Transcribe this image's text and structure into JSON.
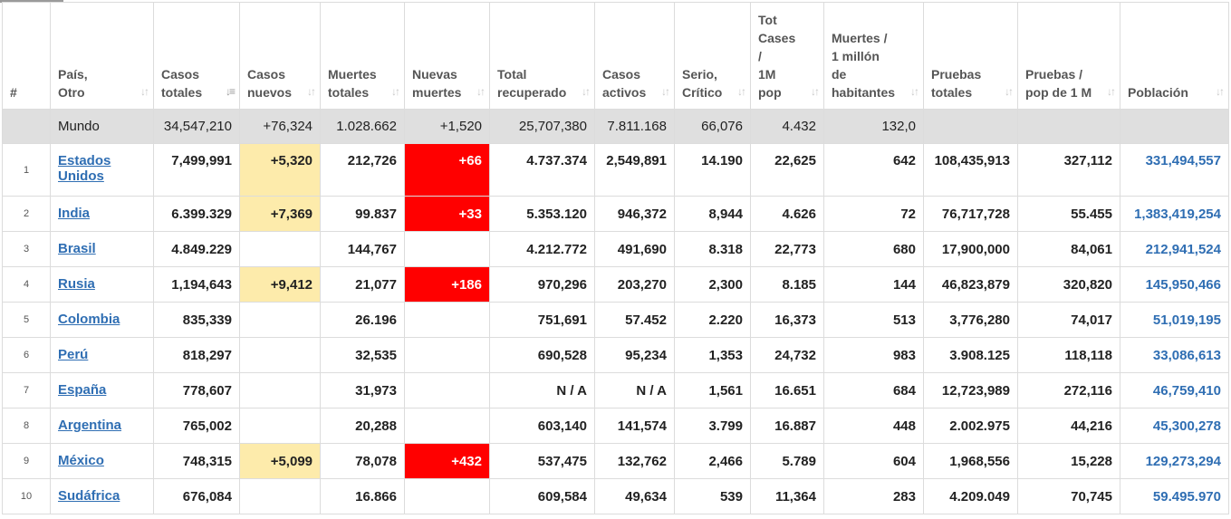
{
  "headers": [
    {
      "key": "idx",
      "label": "#",
      "sort": false
    },
    {
      "key": "country",
      "label": "País,\nOtro",
      "sort": true
    },
    {
      "key": "total_cases",
      "label": "Casos\ntotales",
      "sort": true,
      "active": true
    },
    {
      "key": "new_cases",
      "label": "Casos\nnuevos",
      "sort": true
    },
    {
      "key": "total_deaths",
      "label": "Muertes\ntotales",
      "sort": true
    },
    {
      "key": "new_deaths",
      "label": "Nuevas\nmuertes",
      "sort": true
    },
    {
      "key": "total_recovered",
      "label": "Total\nrecuperado",
      "sort": true
    },
    {
      "key": "active_cases",
      "label": "Casos\nactivos",
      "sort": true
    },
    {
      "key": "serious",
      "label": "Serio,\nCrítico",
      "sort": true
    },
    {
      "key": "cases_per_1m",
      "label": "Tot\nCases\n/\n1M\npop",
      "sort": true
    },
    {
      "key": "deaths_per_1m",
      "label": "Muertes /\n1 millón\nde\nhabitantes",
      "sort": true
    },
    {
      "key": "total_tests",
      "label": "Pruebas\ntotales",
      "sort": true
    },
    {
      "key": "tests_per_1m",
      "label": "Pruebas /\npop de 1 M",
      "sort": true
    },
    {
      "key": "population",
      "label": "Población",
      "sort": true
    }
  ],
  "sort_icons": {
    "default": "↓↑",
    "active": "↓≡"
  },
  "world": {
    "country": "Mundo",
    "total_cases": "34,547,210",
    "new_cases": "+76,324",
    "total_deaths": "1.028.662",
    "new_deaths": "+1,520",
    "total_recovered": "25,707,380",
    "active_cases": "7.811.168",
    "serious": "66,076",
    "cases_per_1m": "4.432",
    "deaths_per_1m": "132,0",
    "total_tests": "",
    "tests_per_1m": "",
    "population": ""
  },
  "rows": [
    {
      "idx": "1",
      "country": "Estados Unidos",
      "total_cases": "7,499,991",
      "new_cases": "+5,320",
      "total_deaths": "212,726",
      "new_deaths": "+66",
      "total_recovered": "4.737.374",
      "active_cases": "2,549,891",
      "serious": "14.190",
      "cases_per_1m": "22,625",
      "deaths_per_1m": "642",
      "total_tests": "108,435,913",
      "tests_per_1m": "327,112",
      "population": "331,494,557"
    },
    {
      "idx": "2",
      "country": "India",
      "total_cases": "6.399.329",
      "new_cases": "+7,369",
      "total_deaths": "99.837",
      "new_deaths": "+33",
      "total_recovered": "5.353.120",
      "active_cases": "946,372",
      "serious": "8,944",
      "cases_per_1m": "4.626",
      "deaths_per_1m": "72",
      "total_tests": "76,717,728",
      "tests_per_1m": "55.455",
      "population": "1,383,419,254"
    },
    {
      "idx": "3",
      "country": "Brasil",
      "total_cases": "4.849.229",
      "new_cases": "",
      "total_deaths": "144,767",
      "new_deaths": "",
      "total_recovered": "4.212.772",
      "active_cases": "491,690",
      "serious": "8.318",
      "cases_per_1m": "22,773",
      "deaths_per_1m": "680",
      "total_tests": "17,900,000",
      "tests_per_1m": "84,061",
      "population": "212,941,524"
    },
    {
      "idx": "4",
      "country": "Rusia",
      "total_cases": "1,194,643",
      "new_cases": "+9,412",
      "total_deaths": "21,077",
      "new_deaths": "+186",
      "total_recovered": "970,296",
      "active_cases": "203,270",
      "serious": "2,300",
      "cases_per_1m": "8.185",
      "deaths_per_1m": "144",
      "total_tests": "46,823,879",
      "tests_per_1m": "320,820",
      "population": "145,950,466"
    },
    {
      "idx": "5",
      "country": "Colombia",
      "total_cases": "835,339",
      "new_cases": "",
      "total_deaths": "26.196",
      "new_deaths": "",
      "total_recovered": "751,691",
      "active_cases": "57.452",
      "serious": "2.220",
      "cases_per_1m": "16,373",
      "deaths_per_1m": "513",
      "total_tests": "3,776,280",
      "tests_per_1m": "74,017",
      "population": "51,019,195"
    },
    {
      "idx": "6",
      "country": "Perú",
      "total_cases": "818,297",
      "new_cases": "",
      "total_deaths": "32,535",
      "new_deaths": "",
      "total_recovered": "690,528",
      "active_cases": "95,234",
      "serious": "1,353",
      "cases_per_1m": "24,732",
      "deaths_per_1m": "983",
      "total_tests": "3.908.125",
      "tests_per_1m": "118,118",
      "population": "33,086,613"
    },
    {
      "idx": "7",
      "country": "España",
      "total_cases": "778,607",
      "new_cases": "",
      "total_deaths": "31,973",
      "new_deaths": "",
      "total_recovered": "N / A",
      "active_cases": "N / A",
      "serious": "1,561",
      "cases_per_1m": "16.651",
      "deaths_per_1m": "684",
      "total_tests": "12,723,989",
      "tests_per_1m": "272,116",
      "population": "46,759,410"
    },
    {
      "idx": "8",
      "country": "Argentina",
      "total_cases": "765,002",
      "new_cases": "",
      "total_deaths": "20,288",
      "new_deaths": "",
      "total_recovered": "603,140",
      "active_cases": "141,574",
      "serious": "3.799",
      "cases_per_1m": "16.887",
      "deaths_per_1m": "448",
      "total_tests": "2.002.975",
      "tests_per_1m": "44,216",
      "population": "45,300,278"
    },
    {
      "idx": "9",
      "country": "México",
      "total_cases": "748,315",
      "new_cases": "+5,099",
      "total_deaths": "78,078",
      "new_deaths": "+432",
      "total_recovered": "537,475",
      "active_cases": "132,762",
      "serious": "2,466",
      "cases_per_1m": "5.789",
      "deaths_per_1m": "604",
      "total_tests": "1,968,556",
      "tests_per_1m": "15,228",
      "population": "129,273,294"
    },
    {
      "idx": "10",
      "country": "Sudáfrica",
      "total_cases": "676,084",
      "new_cases": "",
      "total_deaths": "16.866",
      "new_deaths": "",
      "total_recovered": "609,584",
      "active_cases": "49,634",
      "serious": "539",
      "cases_per_1m": "11,364",
      "deaths_per_1m": "283",
      "total_tests": "4.209.049",
      "tests_per_1m": "70,745",
      "population": "59.495.970"
    }
  ]
}
